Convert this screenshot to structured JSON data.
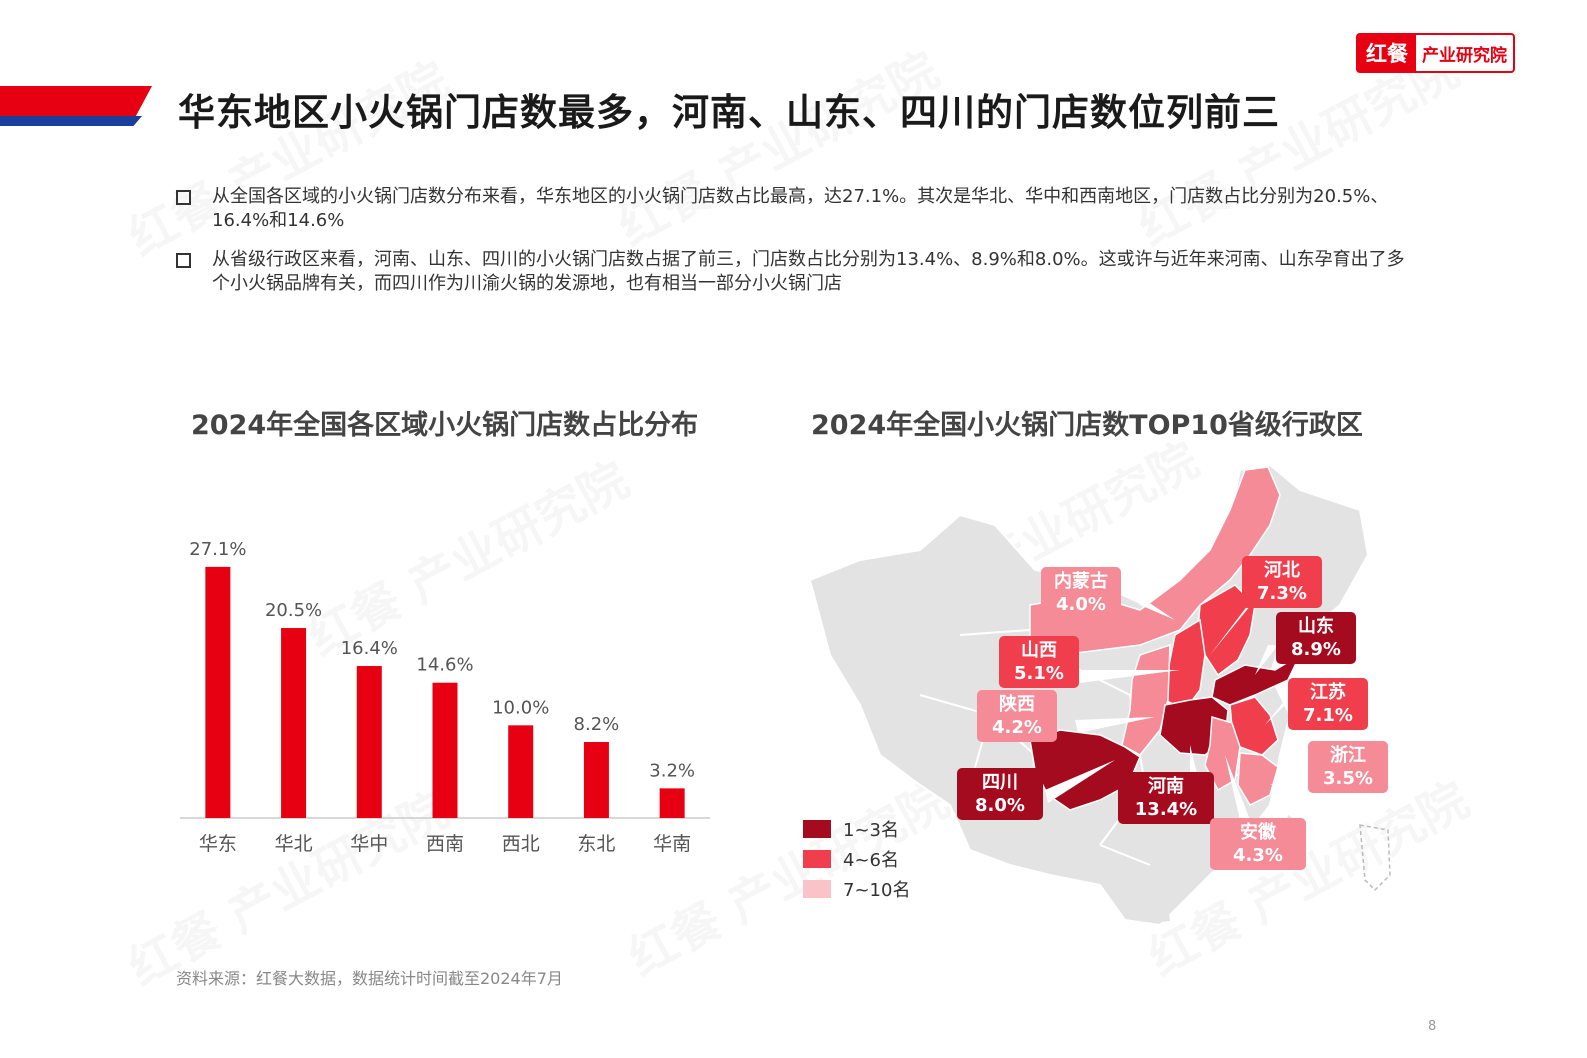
{
  "header": {
    "title": "华东地区小火锅门店数最多，河南、山东、四川的门店数位列前三",
    "logo_mark": "红餐",
    "logo_text": "产业研究院"
  },
  "bullets": [
    {
      "text": "从全国各区域的小火锅门店数分布来看，华东地区的小火锅门店数占比最高，达27.1%。其次是华北、华中和西南地区，门店数占比分别为20.5%、16.4%和14.6%"
    },
    {
      "text": "从省级行政区来看，河南、山东、四川的小火锅门店数占据了前三，门店数占比分别为13.4%、8.9%和8.0%。这或许与近年来河南、山东孕育出了多个小火锅品牌有关，而四川作为川渝火锅的发源地，也有相当一部分小火锅门店"
    }
  ],
  "chart_data": [
    {
      "type": "bar",
      "title": "2024年全国各区域小火锅门店数占比分布",
      "categories": [
        "华东",
        "华北",
        "华中",
        "西南",
        "西北",
        "东北",
        "华南"
      ],
      "values": [
        27.1,
        20.5,
        16.4,
        14.6,
        10.0,
        8.2,
        3.2
      ],
      "value_labels": [
        "27.1%",
        "20.5%",
        "16.4%",
        "14.6%",
        "10.0%",
        "8.2%",
        "3.2%"
      ],
      "ylim": [
        0,
        30
      ],
      "bar_color": "#e60012",
      "grid": false
    },
    {
      "type": "map",
      "title": "2024年全国小火锅门店数TOP10省级行政区",
      "regions": [
        {
          "name": "河南",
          "value": "13.4%",
          "rank_group": "1~3名"
        },
        {
          "name": "山东",
          "value": "8.9%",
          "rank_group": "1~3名"
        },
        {
          "name": "四川",
          "value": "8.0%",
          "rank_group": "1~3名"
        },
        {
          "name": "河北",
          "value": "7.3%",
          "rank_group": "4~6名"
        },
        {
          "name": "江苏",
          "value": "7.1%",
          "rank_group": "4~6名"
        },
        {
          "name": "山西",
          "value": "5.1%",
          "rank_group": "4~6名"
        },
        {
          "name": "安徽",
          "value": "4.3%",
          "rank_group": "7~10名"
        },
        {
          "name": "陕西",
          "value": "4.2%",
          "rank_group": "7~10名"
        },
        {
          "name": "内蒙古",
          "value": "4.0%",
          "rank_group": "7~10名"
        },
        {
          "name": "浙江",
          "value": "3.5%",
          "rank_group": "7~10名"
        }
      ],
      "legend": [
        {
          "label": "1~3名",
          "color": "#a50b1e"
        },
        {
          "label": "4~6名",
          "color": "#f03e4c"
        },
        {
          "label": "7~10名",
          "color": "#f9c3c8"
        }
      ],
      "base_color": "#e3e3e3"
    }
  ],
  "footer": {
    "source": "资料来源：红餐大数据，数据统计时间截至2024年7月",
    "page_number": "8"
  },
  "watermark_text": "红餐 产业研究院"
}
